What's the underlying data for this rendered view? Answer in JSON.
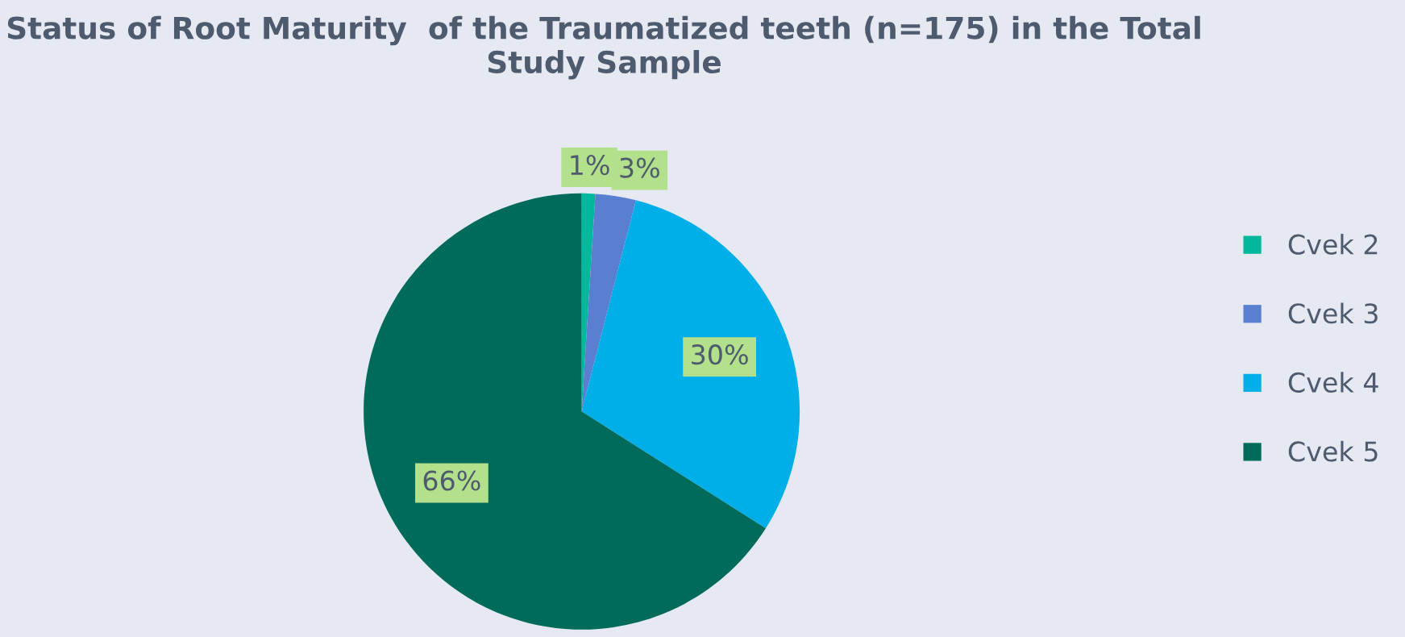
{
  "chart_data": {
    "type": "pie",
    "title": "Status of Root Maturity  of the Traumatized teeth (n=175) in the Total Study Sample",
    "categories": [
      "Cvek 2",
      "Cvek 3",
      "Cvek 4",
      "Cvek 5"
    ],
    "values": [
      1,
      3,
      30,
      66
    ],
    "value_labels": [
      "1%",
      "3%",
      "30%",
      "66%"
    ],
    "colors": [
      "#00b89a",
      "#5b7fd0",
      "#00aee8",
      "#006b5a"
    ],
    "legend": "right"
  }
}
